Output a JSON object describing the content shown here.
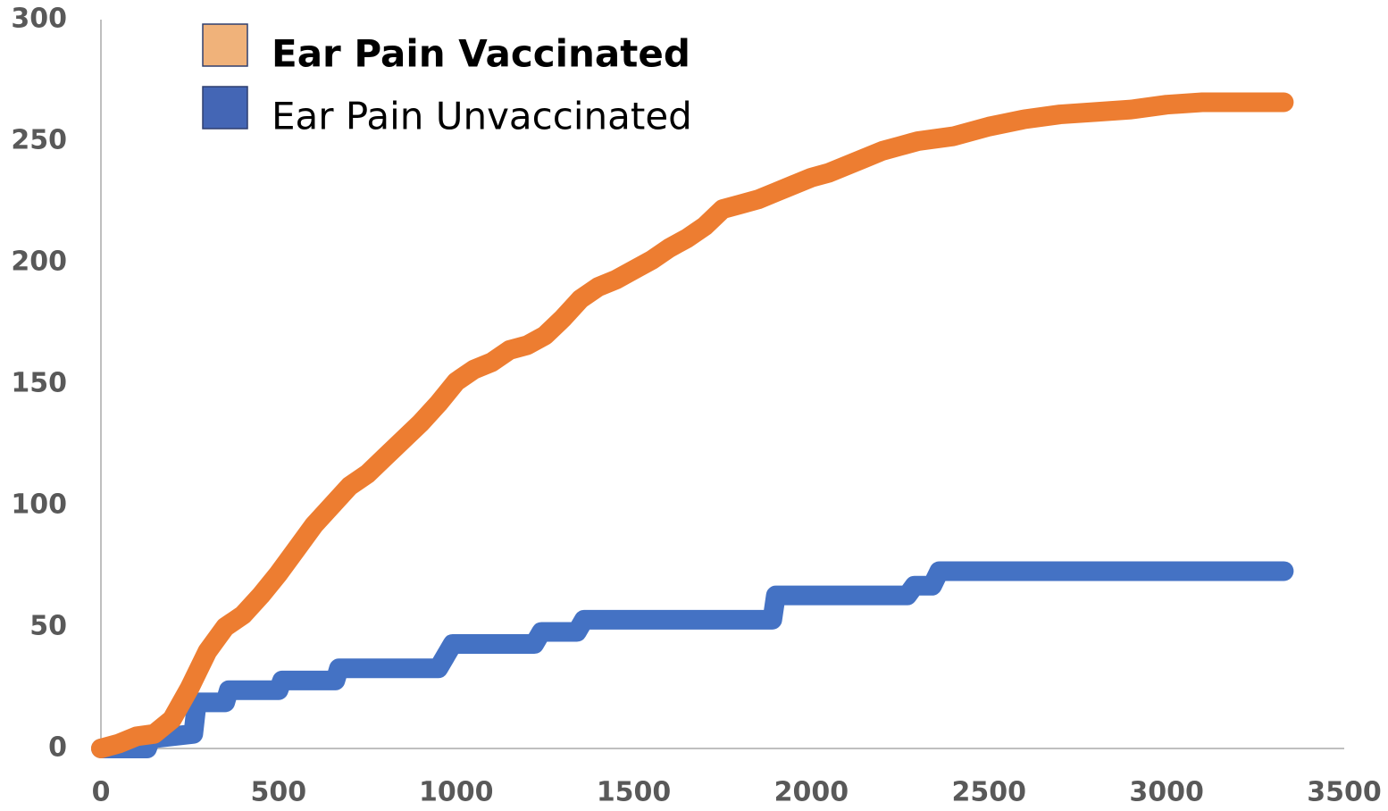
{
  "chart_data": {
    "type": "line",
    "series": [
      {
        "name": "Ear Pain Vaccinated",
        "color": "#ed7d31",
        "swatch": "#f0b27a",
        "x": [
          0,
          50,
          100,
          150,
          200,
          250,
          300,
          350,
          400,
          450,
          500,
          550,
          600,
          650,
          700,
          750,
          800,
          850,
          900,
          950,
          1000,
          1050,
          1100,
          1150,
          1200,
          1250,
          1300,
          1350,
          1400,
          1450,
          1500,
          1550,
          1600,
          1650,
          1700,
          1750,
          1800,
          1850,
          1900,
          1950,
          2000,
          2050,
          2100,
          2150,
          2200,
          2250,
          2300,
          2400,
          2500,
          2600,
          2700,
          2800,
          2900,
          3000,
          3100,
          3330
        ],
        "values": [
          0,
          2,
          5,
          6,
          12,
          25,
          40,
          50,
          55,
          63,
          72,
          82,
          92,
          100,
          108,
          113,
          120,
          127,
          134,
          142,
          151,
          156,
          159,
          164,
          166,
          170,
          177,
          185,
          190,
          193,
          197,
          201,
          206,
          210,
          215,
          222,
          224,
          226,
          229,
          232,
          235,
          237,
          240,
          243,
          246,
          248,
          250,
          252,
          256,
          259,
          261,
          262,
          263,
          265,
          266,
          266
        ]
      },
      {
        "name": "Ear Pain Unvaccinated",
        "color": "#4472c4",
        "swatch": "#4466b5",
        "x": [
          0,
          130,
          140,
          260,
          270,
          350,
          360,
          500,
          510,
          660,
          670,
          950,
          990,
          1220,
          1240,
          1340,
          1360,
          1890,
          1900,
          2270,
          2290,
          2340,
          2360,
          3330
        ],
        "values": [
          0,
          0,
          4,
          6,
          19,
          19,
          24,
          24,
          28,
          28,
          33,
          33,
          43,
          43,
          48,
          48,
          53,
          53,
          63,
          63,
          67,
          67,
          73,
          73
        ]
      }
    ],
    "xlim": [
      0,
      3500
    ],
    "xticks": [
      0,
      500,
      1000,
      1500,
      2000,
      2500,
      3000,
      3500
    ],
    "ylim": [
      0,
      300
    ],
    "yticks": [
      0,
      50,
      100,
      150,
      200,
      250,
      300
    ],
    "legend": "top-left"
  }
}
